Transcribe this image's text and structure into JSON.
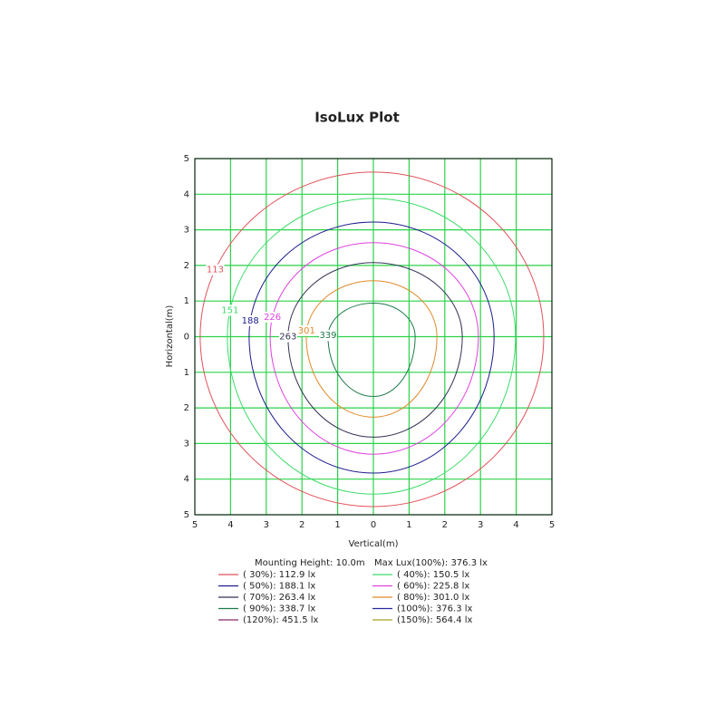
{
  "chart_data": {
    "type": "contour",
    "title": "IsoLux Plot",
    "xlabel": "Vertical(m)",
    "ylabel": "Horizontal(m)",
    "xlim": [
      -5,
      5
    ],
    "ylim": [
      -5,
      5
    ],
    "xticks": [
      {
        "value": -5,
        "label": "5"
      },
      {
        "value": -4,
        "label": "4"
      },
      {
        "value": -3,
        "label": "3"
      },
      {
        "value": -2,
        "label": "2"
      },
      {
        "value": -1,
        "label": "1"
      },
      0,
      1,
      2,
      3,
      4,
      5
    ],
    "yticks": [
      {
        "value": -5,
        "label": "5"
      },
      {
        "value": -4,
        "label": "4"
      },
      {
        "value": -3,
        "label": "3"
      },
      {
        "value": -2,
        "label": "2"
      },
      {
        "value": -1,
        "label": "1"
      },
      0,
      1,
      2,
      3,
      4,
      5
    ],
    "grid": true,
    "grid_color": "#2bd24a",
    "contours": [
      {
        "level": 113,
        "color": "#e0525a",
        "left": -4.85,
        "right": 4.77,
        "top": 4.62,
        "bottom": -4.77
      },
      {
        "level": 151,
        "color": "#3ddc6a",
        "left": -4.09,
        "right": 3.98,
        "top": 3.88,
        "bottom": -4.42
      },
      {
        "level": 188,
        "color": "#1c1c8c",
        "left": -3.48,
        "right": 3.38,
        "top": 3.22,
        "bottom": -3.83
      },
      {
        "level": 226,
        "color": "#e040e0",
        "left": -2.89,
        "right": 2.94,
        "top": 2.64,
        "bottom": -3.3
      },
      {
        "level": 263,
        "color": "#333355",
        "left": -2.39,
        "right": 2.49,
        "top": 2.08,
        "bottom": -2.82
      },
      {
        "level": 301,
        "color": "#e08a2a",
        "left": -1.88,
        "right": 1.78,
        "top": 1.57,
        "bottom": -2.26
      },
      {
        "level": 339,
        "color": "#1e7a4a",
        "left": -1.27,
        "right": 1.17,
        "top": 0.94,
        "bottom": -1.68
      }
    ],
    "legend_header": [
      "Mounting Height: 10.0m",
      "Max Lux(100%): 376.3 lx"
    ],
    "legend": [
      {
        "label": "( 30%): 112.9 lx",
        "color": "#e0525a"
      },
      {
        "label": "( 40%): 150.5 lx",
        "color": "#3ddc6a"
      },
      {
        "label": "( 50%): 188.1 lx",
        "color": "#1c1c8c"
      },
      {
        "label": "( 60%): 225.8 lx",
        "color": "#e040e0"
      },
      {
        "label": "( 70%): 263.4 lx",
        "color": "#333355"
      },
      {
        "label": "( 80%): 301.0 lx",
        "color": "#e08a2a"
      },
      {
        "label": "( 90%): 338.7 lx",
        "color": "#1e7a4a"
      },
      {
        "label": "(100%): 376.3 lx",
        "color": "#2a2aa0"
      },
      {
        "label": "(120%): 451.5 lx",
        "color": "#8a2a6a"
      },
      {
        "label": "(150%): 564.4 lx",
        "color": "#a0a020"
      }
    ]
  }
}
